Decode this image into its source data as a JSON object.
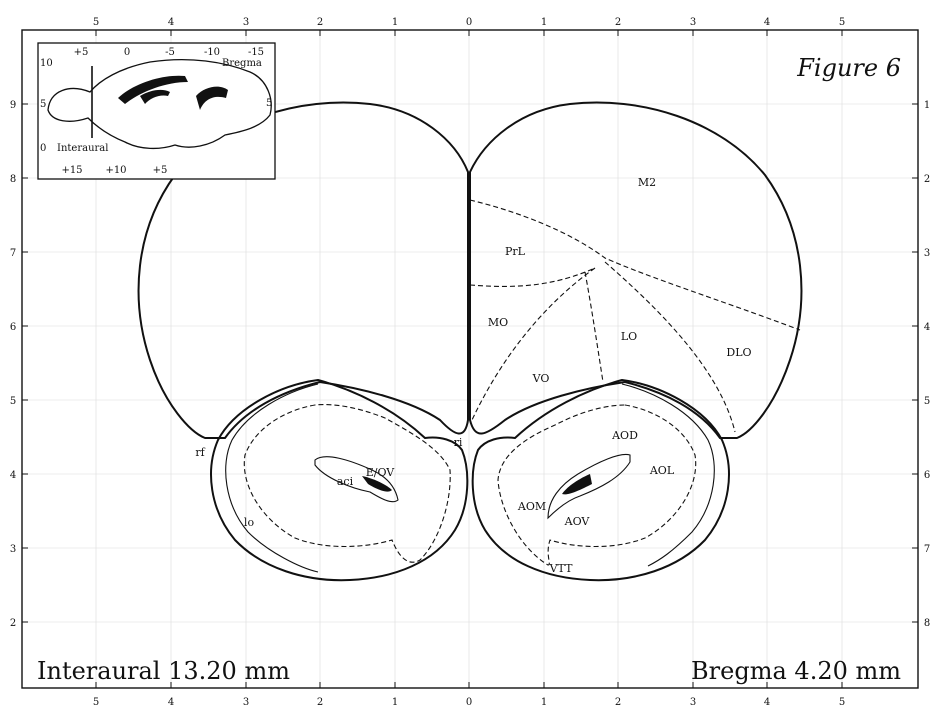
{
  "figure": {
    "title": "Figure 6",
    "interaural_label": "Interaural 13.20 mm",
    "bregma_label": "Bregma 4.20 mm"
  },
  "axes": {
    "top_ticks": [
      "5",
      "4",
      "3",
      "2",
      "1",
      "0",
      "1",
      "2",
      "3",
      "4",
      "5"
    ],
    "bottom_ticks": [
      "5",
      "4",
      "3",
      "2",
      "1",
      "0",
      "1",
      "2",
      "3",
      "4",
      "5"
    ],
    "left_ticks": [
      "9",
      "8",
      "7",
      "6",
      "5",
      "4",
      "3",
      "2"
    ],
    "right_ticks": [
      "1",
      "2",
      "3",
      "4",
      "5",
      "6",
      "7",
      "8"
    ]
  },
  "inset": {
    "top_ticks": [
      "+5",
      "0",
      "-5",
      "-10",
      "-15"
    ],
    "bottom_ticks": [
      "+15",
      "+10",
      "+5"
    ],
    "left_ticks": [
      "10",
      "5",
      "0"
    ],
    "right_ticks": [
      "5"
    ],
    "bregma_label": "Bregma",
    "interaural_label": "Interaural"
  },
  "regions": {
    "M2": "M2",
    "PrL": "PrL",
    "MO": "MO",
    "LO": "LO",
    "VO": "VO",
    "DLO": "DLO",
    "AOD": "AOD",
    "AOL": "AOL",
    "AOM": "AOM",
    "AOV": "AOV",
    "EOV": "E/OV",
    "VTT": "VTT",
    "aci": "aci",
    "rf": "rf",
    "ri": "ri",
    "lo": "lo"
  }
}
